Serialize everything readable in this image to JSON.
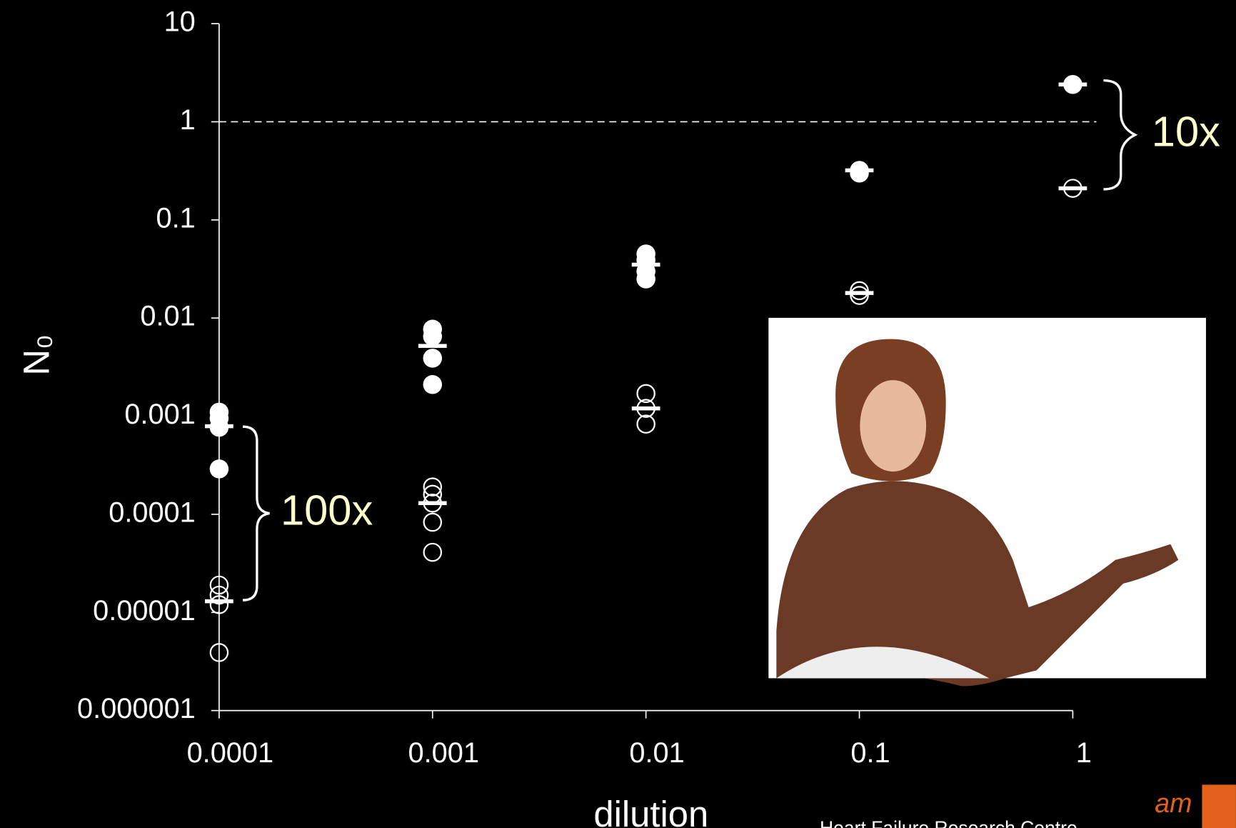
{
  "chart_data": {
    "type": "scatter",
    "xlabel": "dilution",
    "ylabel": "N₀",
    "log_x": true,
    "log_y": true,
    "xlim": [
      0.0001,
      1
    ],
    "ylim": [
      1e-06,
      10
    ],
    "xticks": [
      0.0001,
      0.001,
      0.01,
      0.1,
      1
    ],
    "yticks": [
      1e-06,
      1e-05,
      0.0001,
      0.001,
      0.01,
      0.1,
      1,
      10
    ],
    "hline": 1,
    "series": [
      {
        "marker": "filled",
        "color": "#ffffff",
        "x": [
          0.0001,
          0.0001,
          0.0001,
          0.0001,
          0.001,
          0.001,
          0.001,
          0.001,
          0.01,
          0.01,
          0.01,
          0.01,
          0.1,
          0.1,
          1
        ],
        "values": [
          0.0011,
          0.00095,
          0.00077,
          0.00029,
          0.0077,
          0.0065,
          0.0039,
          0.0021,
          0.045,
          0.039,
          0.03,
          0.025,
          0.32,
          0.3,
          2.4
        ]
      },
      {
        "marker": "open",
        "color": "#ffffff",
        "x": [
          0.0001,
          0.0001,
          0.0001,
          0.0001,
          0.001,
          0.001,
          0.001,
          0.001,
          0.001,
          0.01,
          0.01,
          0.01,
          0.1,
          0.1,
          1
        ],
        "values": [
          1.9e-05,
          1.5e-05,
          1.2e-05,
          3.9e-06,
          0.00019,
          0.00016,
          0.00013,
          8.3e-05,
          4.1e-05,
          0.0017,
          0.0012,
          0.00083,
          0.019,
          0.017,
          0.21
        ]
      },
      {
        "marker": "bar",
        "color": "#ffffff",
        "x": [
          0.0001,
          0.001,
          0.01,
          0.1,
          1
        ],
        "values": [
          0.00079,
          0.0052,
          0.035,
          0.32,
          2.4
        ]
      },
      {
        "marker": "bar",
        "color": "#ffffff",
        "x": [
          0.0001,
          0.001,
          0.01,
          0.1,
          1
        ],
        "values": [
          1.3e-05,
          0.00013,
          0.0012,
          0.018,
          0.21
        ]
      }
    ],
    "annotations": [
      "100x",
      "10x"
    ],
    "annotation_color": "#ffffcc"
  },
  "footer": {
    "text": "Heart Failure Research Centre",
    "logo": "am"
  }
}
